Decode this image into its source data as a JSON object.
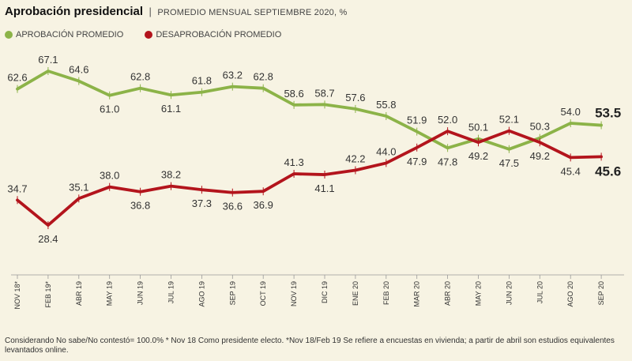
{
  "header": {
    "title": "Aprobación presidencial",
    "separator": "|",
    "subtitle": "PROMEDIO MENSUAL SEPTIEMBRE 2020, %"
  },
  "footnote": "Considerando No sabe/No contestó= 100.0% * Nov 18 Como presidente electo. *Nov 18/Feb 19 Se refiere a encuestas en vivienda; a partir de abril son estudios equivalentes levantados online.",
  "chart_data": {
    "type": "line",
    "title": "Aprobación presidencial",
    "subtitle": "PROMEDIO MENSUAL SEPTIEMBRE 2020, %",
    "categories": [
      "NOV 18*",
      "FEB 19*",
      "ABR 19",
      "MAY 19",
      "JUN 19",
      "JUL 19",
      "AGO 19",
      "SEP 19",
      "OCT 19",
      "NOV 19",
      "DIC 19",
      "ENE 20",
      "FEB 20",
      "MAR 20",
      "ABR 20",
      "MAY 20",
      "JUN 20",
      "JUL 20",
      "AGO 20",
      "SEP 20"
    ],
    "ylim": [
      20,
      75
    ],
    "grid": false,
    "legend": "top-left",
    "series": [
      {
        "name": "APROBACIÓN PROMEDIO",
        "color": "#8cb348",
        "values": [
          62.6,
          67.1,
          64.6,
          61.0,
          62.8,
          61.1,
          61.8,
          63.2,
          62.8,
          58.6,
          58.7,
          57.6,
          55.8,
          51.9,
          47.8,
          50.1,
          47.5,
          50.3,
          54.0,
          53.5
        ],
        "labels": [
          "62.6",
          "67.1",
          "64.6",
          "61.0",
          "62.8",
          "61.1",
          "61.8",
          "63.2",
          "62.8",
          "58.6",
          "58.7",
          "57.6",
          "55.8",
          "51.9",
          "47.8",
          "50.1",
          "47.5",
          "50.3",
          "54.0",
          "53.5"
        ]
      },
      {
        "name": "DESAPROBACIÓN PROMEDIO",
        "color": "#b3141c",
        "values": [
          34.7,
          28.4,
          35.1,
          38.0,
          36.8,
          38.2,
          37.3,
          36.6,
          36.9,
          41.3,
          41.1,
          42.2,
          44.0,
          47.9,
          52.0,
          49.2,
          52.1,
          49.2,
          45.4,
          45.6
        ],
        "labels": [
          "34.7",
          "28.4",
          "35.1",
          "38.0",
          "36.8",
          "38.2",
          "37.3",
          "36.6",
          "36.9",
          "41.3",
          "41.1",
          "42.2",
          "44.0",
          "47.9",
          "52.0",
          "49.2",
          "52.1",
          "49.2",
          "45.4",
          "45.6"
        ]
      }
    ]
  }
}
